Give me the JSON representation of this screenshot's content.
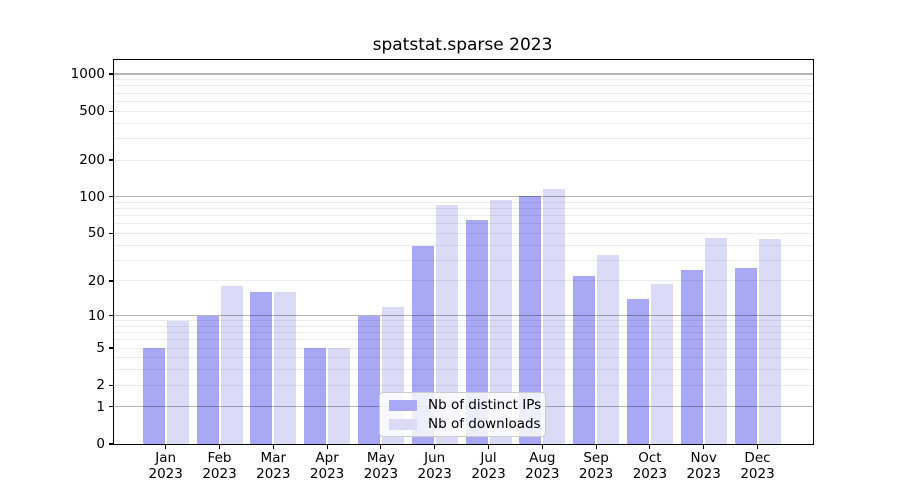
{
  "chart_data": {
    "type": "bar",
    "title": "spatstat.sparse 2023",
    "categories": [
      "Jan 2023",
      "Feb 2023",
      "Mar 2023",
      "Apr 2023",
      "May 2023",
      "Jun 2023",
      "Jul 2023",
      "Aug 2023",
      "Sep 2023",
      "Oct 2023",
      "Nov 2023",
      "Dec 2023"
    ],
    "series": [
      {
        "name": "Nb of distinct IPs",
        "color": "#a8a8f4",
        "values": [
          5,
          10,
          16,
          5,
          10,
          39,
          65,
          102,
          22,
          14,
          25,
          26
        ]
      },
      {
        "name": "Nb of downloads",
        "color": "#dbdbf8",
        "values": [
          9,
          18,
          16,
          5,
          12,
          85,
          95,
          115,
          33,
          19,
          46,
          45
        ]
      }
    ],
    "xlabel": "",
    "ylabel": "",
    "yscale": "log1p",
    "ylim": [
      0,
      1300
    ],
    "yticks": [
      0,
      1,
      2,
      5,
      10,
      20,
      50,
      100,
      200,
      500,
      1000
    ],
    "grid": {
      "on": true,
      "major_lines": [
        1,
        10,
        100,
        1000
      ],
      "minor_lines": [
        2,
        3,
        4,
        5,
        6,
        7,
        8,
        9,
        20,
        30,
        40,
        50,
        60,
        70,
        80,
        90,
        200,
        300,
        400,
        500,
        600,
        700,
        800,
        900
      ]
    },
    "legend_position": "lower center"
  },
  "colors": {
    "axis": "#000000",
    "grid_major": "rgba(0,0,0,0.29)",
    "grid_minor": "rgba(0,0,0,0.075)",
    "legend_border": "#cccccc",
    "background": "#ffffff"
  }
}
